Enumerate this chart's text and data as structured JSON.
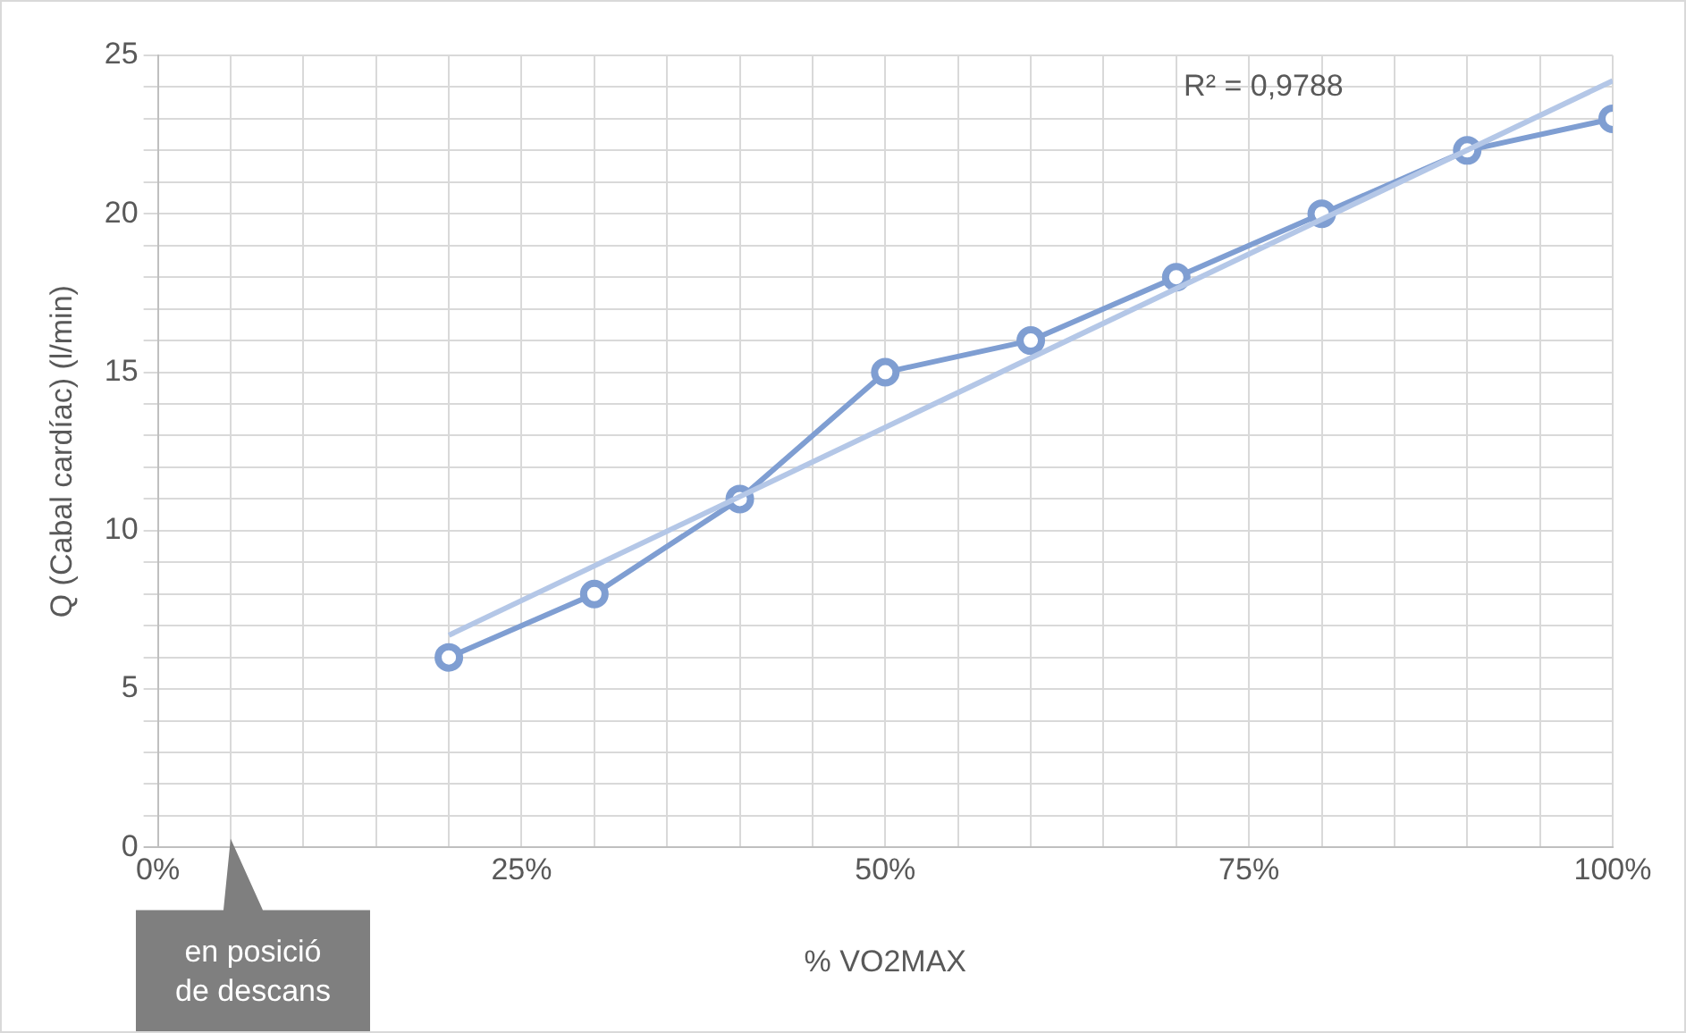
{
  "chart_data": {
    "type": "line",
    "xlabel": "% VO2MAX",
    "ylabel": "Q (Cabal cardíac) (l/min)",
    "series": [
      {
        "color": "#7f9ed2",
        "x": [
          20,
          30,
          40,
          50,
          60,
          70,
          80,
          90,
          100
        ],
        "values": [
          6,
          8,
          11,
          15,
          16,
          18,
          20,
          22,
          23
        ],
        "marker": "circle"
      },
      {
        "type": "line",
        "color": "#b4c7e7",
        "x": [
          20,
          100
        ],
        "values": [
          6.7,
          24.2
        ],
        "marker": "none"
      }
    ],
    "xlim": [
      0,
      100
    ],
    "xticks": [
      {
        "value": 0,
        "label": "0%"
      },
      {
        "value": 5,
        "label": null
      },
      {
        "value": 10,
        "label": null
      },
      {
        "value": 15,
        "label": null
      },
      {
        "value": 20,
        "label": null
      },
      {
        "value": 25,
        "label": "25%"
      },
      {
        "value": 30,
        "label": null
      },
      {
        "value": 35,
        "label": null
      },
      {
        "value": 40,
        "label": null
      },
      {
        "value": 45,
        "label": null
      },
      {
        "value": 50,
        "label": "50%"
      },
      {
        "value": 55,
        "label": null
      },
      {
        "value": 60,
        "label": null
      },
      {
        "value": 65,
        "label": null
      },
      {
        "value": 70,
        "label": null
      },
      {
        "value": 75,
        "label": "75%"
      },
      {
        "value": 80,
        "label": null
      },
      {
        "value": 85,
        "label": null
      },
      {
        "value": 90,
        "label": null
      },
      {
        "value": 95,
        "label": null
      },
      {
        "value": 100,
        "label": "100%"
      }
    ],
    "ylim": [
      0,
      25
    ],
    "yticks": [
      0,
      {
        "value": 1,
        "label": null
      },
      {
        "value": 2,
        "label": null
      },
      {
        "value": 3,
        "label": null
      },
      {
        "value": 4,
        "label": null
      },
      5,
      {
        "value": 6,
        "label": null
      },
      {
        "value": 7,
        "label": null
      },
      {
        "value": 8,
        "label": null
      },
      {
        "value": 9,
        "label": null
      },
      10,
      {
        "value": 11,
        "label": null
      },
      {
        "value": 12,
        "label": null
      },
      {
        "value": 13,
        "label": null
      },
      {
        "value": 14,
        "label": null
      },
      15,
      {
        "value": 16,
        "label": null
      },
      {
        "value": 17,
        "label": null
      },
      {
        "value": 18,
        "label": null
      },
      {
        "value": 19,
        "label": null
      },
      20,
      {
        "value": 21,
        "label": null
      },
      {
        "value": 22,
        "label": null
      },
      {
        "value": 23,
        "label": null
      },
      {
        "value": 24,
        "label": null
      },
      25
    ],
    "grid": true,
    "legend": false,
    "annotations": [
      "R² = 0,9788",
      "en posició de descans"
    ]
  }
}
